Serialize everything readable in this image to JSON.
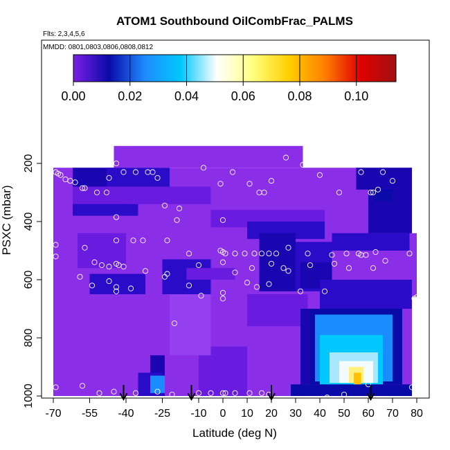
{
  "chart_data": {
    "type": "heatmap",
    "title": "ATOM1 Southbound OilCombFrac_PALMS",
    "notes": [
      "Flts: 2,3,4,5,6",
      "MMDD: 0801,0803,0806,0808,0812"
    ],
    "xlabel": "Latitude (deg N)",
    "ylabel": "PSXC (mbar)",
    "xlim": [
      -70,
      80
    ],
    "ylim": [
      1000,
      80
    ],
    "y_reversed": true,
    "x_ticks": [
      "-70",
      "-55",
      "-40",
      "-25",
      "-10",
      "0",
      "10",
      "20",
      "30",
      "40",
      "50",
      "60",
      "70",
      "80"
    ],
    "y_ticks": [
      "200",
      "400",
      "600",
      "800",
      "1000"
    ],
    "colorbar": {
      "range": [
        0.0,
        0.114
      ],
      "tick_labels": [
        "0.00",
        "0.02",
        "0.04",
        "0.06",
        "0.08",
        "0.10"
      ],
      "colors": [
        "#7a1fe6",
        "#0a0aa8",
        "#1e8cff",
        "#00c8ff",
        "#ffffff",
        "#ffff80",
        "#ffd000",
        "#ff8000",
        "#e00000",
        "#a01010"
      ]
    },
    "fill_colors": {
      "background": "#8a2ee8",
      "lighter": "#9440f0",
      "low": "#6a1be0",
      "medium": "#2a0cc8",
      "dark": "#1a06b0",
      "blue": "#0a0aa8",
      "sky": "#1a8cff",
      "cyan": "#00c8ff",
      "pale": "#a8e8ff",
      "white": "#f4fbff",
      "yellow": "#fff080",
      "orange": "#ffc000",
      "gold": "#ffd800"
    },
    "field_regions": [
      {
        "lat": [
          -62,
          -40
        ],
        "p": [
          215,
          340
        ],
        "level": "dark"
      },
      {
        "lat": [
          -48,
          -22
        ],
        "p": [
          215,
          300
        ],
        "level": "medium"
      },
      {
        "lat": [
          -62,
          -5
        ],
        "p": [
          280,
          340
        ],
        "level": "low"
      },
      {
        "lat": [
          -62,
          -35
        ],
        "p": [
          340,
          380
        ],
        "level": "medium"
      },
      {
        "lat": [
          -60,
          -40
        ],
        "p": [
          440,
          560
        ],
        "level": "low"
      },
      {
        "lat": [
          -55,
          -32
        ],
        "p": [
          580,
          650
        ],
        "level": "medium"
      },
      {
        "lat": [
          -25,
          -5
        ],
        "p": [
          530,
          650
        ],
        "level": "medium"
      },
      {
        "lat": [
          -15,
          5
        ],
        "p": [
          560,
          600
        ],
        "level": "low"
      },
      {
        "lat": [
          -5,
          42
        ],
        "p": [
          360,
          420
        ],
        "level": "low"
      },
      {
        "lat": [
          10,
          42
        ],
        "p": [
          400,
          460
        ],
        "level": "medium"
      },
      {
        "lat": [
          15,
          30
        ],
        "p": [
          440,
          640
        ],
        "level": "dark"
      },
      {
        "lat": [
          30,
          45
        ],
        "p": [
          470,
          640
        ],
        "level": "medium"
      },
      {
        "lat": [
          32,
          45
        ],
        "p": [
          540,
          630
        ],
        "level": "dark"
      },
      {
        "lat": [
          55,
          78
        ],
        "p": [
          215,
          290
        ],
        "level": "dark"
      },
      {
        "lat": [
          60,
          78
        ],
        "p": [
          280,
          440
        ],
        "level": "dark"
      },
      {
        "lat": [
          62,
          70
        ],
        "p": [
          290,
          330
        ],
        "level": "blue"
      },
      {
        "lat": [
          45,
          77
        ],
        "p": [
          440,
          500
        ],
        "level": "medium"
      },
      {
        "lat": [
          40,
          78
        ],
        "p": [
          600,
          700
        ],
        "level": "medium"
      },
      {
        "lat": [
          -30,
          -24
        ],
        "p": [
          860,
          1000
        ],
        "level": "dark"
      },
      {
        "lat": [
          -35,
          -25
        ],
        "p": [
          920,
          1000
        ],
        "level": "medium"
      },
      {
        "lat": [
          -30,
          -24
        ],
        "p": [
          930,
          990
        ],
        "level": "sky"
      },
      {
        "lat": [
          -10,
          10
        ],
        "p": [
          830,
          1000
        ],
        "level": "low"
      },
      {
        "lat": [
          -22,
          -5
        ],
        "p": [
          650,
          860
        ],
        "level": "lighter"
      },
      {
        "lat": [
          10,
          35
        ],
        "p": [
          650,
          760
        ],
        "level": "low"
      },
      {
        "lat": [
          28,
          78
        ],
        "p": [
          960,
          1000
        ],
        "level": "blue"
      },
      {
        "lat": [
          32,
          38
        ],
        "p": [
          700,
          960
        ],
        "level": "dark"
      },
      {
        "lat": [
          36,
          74
        ],
        "p": [
          700,
          960
        ],
        "level": "blue"
      },
      {
        "lat": [
          38,
          70
        ],
        "p": [
          720,
          950
        ],
        "level": "sky"
      },
      {
        "lat": [
          40,
          66
        ],
        "p": [
          790,
          960
        ],
        "level": "cyan"
      },
      {
        "lat": [
          44,
          64
        ],
        "p": [
          850,
          955
        ],
        "level": "pale"
      },
      {
        "lat": [
          48,
          62
        ],
        "p": [
          880,
          955
        ],
        "level": "white"
      },
      {
        "lat": [
          52,
          58
        ],
        "p": [
          900,
          955
        ],
        "level": "yellow"
      },
      {
        "lat": [
          54,
          57
        ],
        "p": [
          920,
          960
        ],
        "level": "orange"
      }
    ],
    "sample_points": [
      [
        -69,
        230
      ],
      [
        -68,
        235
      ],
      [
        -67,
        240
      ],
      [
        -65,
        255
      ],
      [
        -63,
        260
      ],
      [
        -61,
        265
      ],
      [
        -58,
        285
      ],
      [
        -57,
        285
      ],
      [
        -52,
        300
      ],
      [
        -48,
        300
      ],
      [
        -47,
        250
      ],
      [
        -44,
        200
      ],
      [
        -41,
        230
      ],
      [
        -36,
        230
      ],
      [
        -31,
        230
      ],
      [
        -29,
        230
      ],
      [
        -27,
        250
      ],
      [
        -24,
        345
      ],
      [
        -18,
        355
      ],
      [
        -8,
        215
      ],
      [
        -1,
        270
      ],
      [
        0,
        395
      ],
      [
        4,
        230
      ],
      [
        11,
        270
      ],
      [
        15,
        300
      ],
      [
        17,
        300
      ],
      [
        20,
        260
      ],
      [
        26,
        180
      ],
      [
        33,
        205
      ],
      [
        40,
        240
      ],
      [
        48,
        300
      ],
      [
        57,
        230
      ],
      [
        61,
        300
      ],
      [
        62,
        300
      ],
      [
        64,
        290
      ],
      [
        66,
        230
      ],
      [
        70,
        260
      ],
      [
        -44,
        385
      ],
      [
        -37,
        465
      ],
      [
        -33,
        465
      ],
      [
        -23,
        465
      ],
      [
        -19,
        395
      ],
      [
        -44,
        465
      ],
      [
        -69,
        480
      ],
      [
        -57,
        490
      ],
      [
        -14,
        510
      ],
      [
        -1,
        500
      ],
      [
        0,
        505
      ],
      [
        1,
        510
      ],
      [
        5,
        510
      ],
      [
        9,
        510
      ],
      [
        13,
        510
      ],
      [
        16,
        510
      ],
      [
        19,
        510
      ],
      [
        22,
        510
      ],
      [
        27,
        490
      ],
      [
        35,
        510
      ],
      [
        45,
        515
      ],
      [
        51,
        510
      ],
      [
        57,
        515
      ],
      [
        59,
        515
      ],
      [
        63,
        505
      ],
      [
        67,
        535
      ],
      [
        77,
        510
      ],
      [
        -69,
        520
      ],
      [
        -53,
        540
      ],
      [
        -50,
        550
      ],
      [
        -47,
        555
      ],
      [
        -44,
        545
      ],
      [
        -43,
        550
      ],
      [
        -41,
        555
      ],
      [
        -32,
        570
      ],
      [
        -24,
        590
      ],
      [
        -10,
        550
      ],
      [
        0,
        540
      ],
      [
        12,
        560
      ],
      [
        20,
        545
      ],
      [
        25,
        560
      ],
      [
        36,
        550
      ],
      [
        46,
        545
      ],
      [
        52,
        560
      ],
      [
        56,
        510
      ],
      [
        62,
        560
      ],
      [
        -59,
        590
      ],
      [
        -54,
        620
      ],
      [
        -47,
        605
      ],
      [
        -44,
        625
      ],
      [
        -38,
        630
      ],
      [
        -23,
        580
      ],
      [
        -14,
        620
      ],
      [
        -9,
        655
      ],
      [
        0,
        665
      ],
      [
        0,
        645
      ],
      [
        5,
        575
      ],
      [
        10,
        610
      ],
      [
        14,
        625
      ],
      [
        19,
        615
      ],
      [
        27,
        570
      ],
      [
        32,
        640
      ],
      [
        42,
        640
      ],
      [
        -44,
        640
      ],
      [
        -20,
        750
      ],
      [
        -69,
        970
      ],
      [
        -58,
        965
      ],
      [
        -51,
        990
      ],
      [
        -45,
        985
      ],
      [
        -36,
        990
      ],
      [
        -27,
        985
      ],
      [
        -21,
        995
      ],
      [
        -10,
        990
      ],
      [
        -5,
        990
      ],
      [
        0,
        990
      ],
      [
        1,
        990
      ],
      [
        5,
        990
      ],
      [
        11,
        990
      ],
      [
        16,
        990
      ],
      [
        19,
        995
      ],
      [
        31,
        1010
      ],
      [
        43,
        1005
      ],
      [
        50,
        995
      ],
      [
        60,
        960
      ],
      [
        78,
        970
      ],
      [
        80,
        660
      ],
      [
        79,
        665
      ]
    ],
    "arrows_lat": [
      -41,
      -13,
      20,
      61
    ]
  }
}
